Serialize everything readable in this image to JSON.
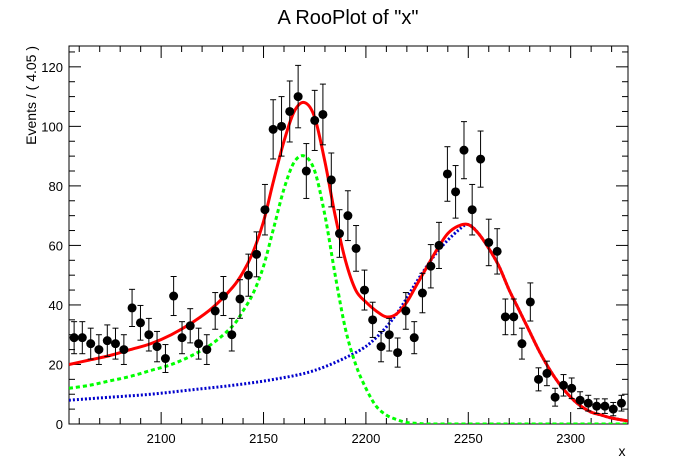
{
  "chart_data": {
    "type": "scatter",
    "title": "A RooPlot of \"x\"",
    "xlabel": "x",
    "ylabel": "Events / ( 4.05 )",
    "xlim": [
      2055,
      2328
    ],
    "ylim": [
      0,
      127
    ],
    "x_ticks": [
      2100,
      2150,
      2200,
      2250,
      2300
    ],
    "y_ticks": [
      0,
      20,
      40,
      60,
      80,
      100,
      120
    ],
    "grid": false,
    "legend": "none",
    "colors": {
      "data": "#000000",
      "total_pdf": "#ff0000",
      "background_pdf": "#0000cc",
      "signal_pdf": "#00ff00"
    },
    "data_points": {
      "x": [
        2057.5,
        2061.5,
        2065.6,
        2069.6,
        2073.7,
        2077.7,
        2081.8,
        2085.8,
        2089.9,
        2094.0,
        2098.0,
        2102.1,
        2106.1,
        2110.2,
        2114.2,
        2118.3,
        2122.3,
        2126.4,
        2130.4,
        2134.5,
        2138.5,
        2142.6,
        2146.6,
        2150.7,
        2154.7,
        2158.8,
        2162.8,
        2166.9,
        2170.9,
        2175.0,
        2179.0,
        2183.1,
        2187.1,
        2191.2,
        2195.2,
        2199.3,
        2203.3,
        2207.4,
        2211.4,
        2215.5,
        2219.5,
        2223.6,
        2227.6,
        2231.7,
        2235.7,
        2239.8,
        2243.8,
        2247.9,
        2251.9,
        2256.0,
        2260.0,
        2264.1,
        2268.1,
        2272.2,
        2276.2,
        2280.3,
        2284.3,
        2288.4,
        2292.4,
        2296.5,
        2300.5,
        2304.6,
        2308.6,
        2312.7,
        2316.7,
        2320.8,
        2324.8
      ],
      "y": [
        29,
        29,
        27,
        25,
        28,
        27,
        25,
        39,
        34,
        30,
        26,
        22,
        43,
        29,
        33,
        27,
        25,
        38,
        43,
        30,
        42,
        50,
        57,
        72,
        99,
        100,
        105,
        110,
        85,
        102,
        104,
        82,
        64,
        70,
        59,
        45,
        35,
        26,
        30,
        24,
        38,
        29,
        44,
        53,
        60,
        84,
        78,
        92,
        72,
        89,
        61,
        58,
        36,
        36,
        27,
        41,
        15,
        17,
        9,
        13,
        12,
        8,
        7,
        6,
        6,
        5,
        7
      ]
    },
    "series": [
      {
        "name": "",
        "color": "#ff0000",
        "style": "solid",
        "x": [
          2055,
          2065,
          2075,
          2085,
          2095,
          2105,
          2115,
          2125,
          2135,
          2140,
          2145,
          2150,
          2155,
          2160,
          2165,
          2170,
          2175,
          2180,
          2185,
          2190,
          2195,
          2200,
          2205,
          2210,
          2215,
          2220,
          2225,
          2230,
          2235,
          2240,
          2245,
          2250,
          2255,
          2260,
          2265,
          2270,
          2275,
          2280,
          2285,
          2290,
          2295,
          2300,
          2305,
          2310,
          2315,
          2320,
          2328
        ],
        "y": [
          20,
          21.5,
          23,
          25,
          27,
          30,
          34,
          39,
          46,
          51,
          58,
          68,
          82,
          95,
          105,
          108,
          103,
          88,
          70,
          55,
          45,
          41,
          38,
          36,
          37,
          41,
          47,
          53,
          59,
          64,
          66.5,
          67,
          64,
          59,
          53,
          45,
          38,
          31,
          24,
          18,
          13,
          9,
          6,
          4,
          3,
          2,
          1
        ]
      },
      {
        "name": "",
        "color": "#0000cc",
        "style": "dotted",
        "x": [
          2055,
          2075,
          2095,
          2115,
          2135,
          2155,
          2175,
          2195,
          2205,
          2215,
          2225,
          2235,
          2245,
          2250,
          2255,
          2260,
          2265,
          2270,
          2275,
          2280,
          2285,
          2290,
          2295,
          2300,
          2305,
          2310,
          2315,
          2320,
          2328
        ],
        "y": [
          8,
          9,
          10,
          11.5,
          13,
          15,
          18,
          24,
          29,
          37,
          48,
          58,
          65,
          67,
          64,
          59,
          53,
          45,
          38,
          31,
          24,
          18,
          13,
          9,
          6,
          4,
          3,
          2,
          1
        ]
      },
      {
        "name": "",
        "color": "#00ff00",
        "style": "dashed",
        "x": [
          2055,
          2065,
          2075,
          2085,
          2095,
          2105,
          2115,
          2125,
          2135,
          2140,
          2145,
          2150,
          2155,
          2160,
          2165,
          2170,
          2175,
          2180,
          2185,
          2190,
          2195,
          2200,
          2205,
          2210,
          2215,
          2220,
          2225,
          2230,
          2240,
          2260,
          2280,
          2300,
          2328
        ],
        "y": [
          12,
          13,
          14.5,
          16,
          18,
          20,
          23,
          27,
          33,
          38,
          44,
          53,
          66,
          79,
          88,
          90,
          85,
          70,
          50,
          32,
          20,
          12,
          6,
          3,
          1.5,
          0.5,
          0.2,
          0,
          0,
          0,
          0,
          0,
          0
        ]
      }
    ]
  }
}
